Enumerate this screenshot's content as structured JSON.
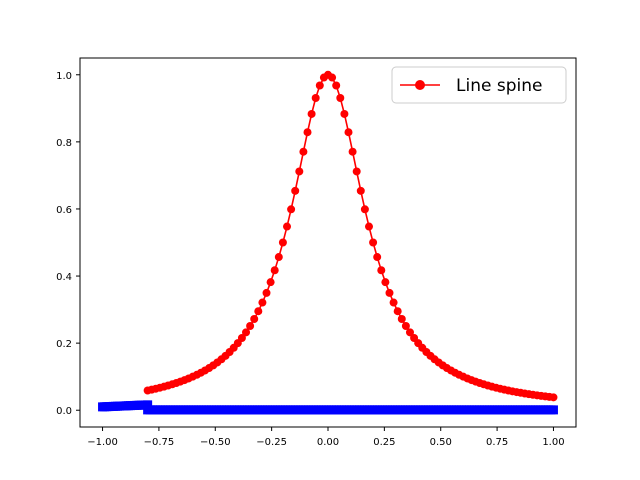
{
  "chart_data": {
    "type": "line",
    "xlim": [
      -1.0,
      1.0
    ],
    "ylim": [
      0.0,
      1.0
    ],
    "x_ticks": [
      -1.0,
      -0.75,
      -0.5,
      -0.25,
      0.0,
      0.25,
      0.5,
      0.75,
      1.0
    ],
    "x_tick_labels": [
      "−1.00",
      "−0.75",
      "−0.50",
      "−0.25",
      "0.00",
      "0.25",
      "0.50",
      "0.75",
      "1.00"
    ],
    "y_ticks": [
      0.0,
      0.2,
      0.4,
      0.6,
      0.8,
      1.0
    ],
    "y_tick_labels": [
      "0.0",
      "0.2",
      "0.4",
      "0.6",
      "0.8",
      "1.0"
    ],
    "grid": false,
    "legend_placement": "top-right",
    "legend": [
      "Line spine"
    ],
    "series": [
      {
        "name": "Line spine",
        "color": "#ff0000",
        "marker": "circle",
        "style": "line",
        "function": "1/(1+25x^2)",
        "x_start": -0.8,
        "x_end": 1.0,
        "n_points": 100
      },
      {
        "name": "",
        "color": "#0000ff",
        "marker": "square",
        "style": "markers",
        "segments": [
          {
            "x_start": -1.0,
            "x_end": -0.8,
            "y_start": 0.01,
            "y_end": 0.016,
            "n_points": 22
          },
          {
            "x_start": -0.8,
            "x_end": 1.0,
            "y_start": 0.001,
            "y_end": 0.001,
            "n_points": 160
          }
        ]
      }
    ]
  }
}
